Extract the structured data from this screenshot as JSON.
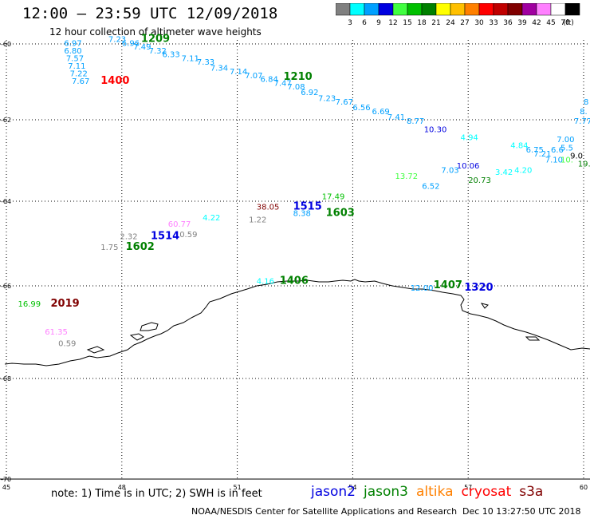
{
  "title": "12:00 – 23:59 UTC 12/09/2018",
  "subtitle": "12 hour collection of altimeter wave heights",
  "colorbar": {
    "unit": "(ft)",
    "swatches": [
      {
        "label": "3",
        "color": "#808080"
      },
      {
        "label": "6",
        "color": "#00ffff"
      },
      {
        "label": "9",
        "color": "#00a0ff"
      },
      {
        "label": "12",
        "color": "#0000e0"
      },
      {
        "label": "15",
        "color": "#40ff40"
      },
      {
        "label": "18",
        "color": "#00c000"
      },
      {
        "label": "21",
        "color": "#008000"
      },
      {
        "label": "24",
        "color": "#ffff00"
      },
      {
        "label": "27",
        "color": "#ffc000"
      },
      {
        "label": "30",
        "color": "#ff8000"
      },
      {
        "label": "33",
        "color": "#ff0000"
      },
      {
        "label": "36",
        "color": "#c00000"
      },
      {
        "label": "39",
        "color": "#800000"
      },
      {
        "label": "42",
        "color": "#a000a0"
      },
      {
        "label": "45",
        "color": "#ff80ff"
      },
      {
        "label": "70",
        "color": "#ffffff"
      },
      {
        "label": "",
        "color": "#000000"
      }
    ]
  },
  "axes": {
    "lon_ticks": [
      "45",
      "48",
      "51",
      "54",
      "57",
      "60"
    ],
    "lat_ticks": [
      "-60",
      "-62",
      "-64",
      "-66",
      "-68",
      "-70"
    ]
  },
  "labels": [
    {
      "text": "6.97",
      "lon": 46.5,
      "lat": -60.05,
      "color": "#00a0ff"
    },
    {
      "text": "6.80",
      "lon": 46.5,
      "lat": -60.25,
      "color": "#00a0ff"
    },
    {
      "text": "7.57",
      "lon": 46.55,
      "lat": -60.45,
      "color": "#00a0ff"
    },
    {
      "text": "7.11",
      "lon": 46.6,
      "lat": -60.65,
      "color": "#00a0ff"
    },
    {
      "text": "7.22",
      "lon": 46.65,
      "lat": -60.85,
      "color": "#00a0ff"
    },
    {
      "text": "7.67",
      "lon": 46.7,
      "lat": -61.05,
      "color": "#00a0ff"
    },
    {
      "text": "1400",
      "lon": 47.45,
      "lat": -61.05,
      "color": "#ff0000"
    },
    {
      "text": "7.23",
      "lon": 47.65,
      "lat": -59.95,
      "color": "#00a0ff"
    },
    {
      "text": "6.96",
      "lon": 48.0,
      "lat": -60.05,
      "color": "#00a0ff"
    },
    {
      "text": "1209",
      "lon": 48.5,
      "lat": -59.95,
      "color": "#008000"
    },
    {
      "text": "7.49",
      "lon": 48.3,
      "lat": -60.15,
      "color": "#00a0ff"
    },
    {
      "text": "7.32",
      "lon": 48.7,
      "lat": -60.25,
      "color": "#00a0ff"
    },
    {
      "text": "6.33",
      "lon": 49.05,
      "lat": -60.35,
      "color": "#00a0ff"
    },
    {
      "text": "7.11",
      "lon": 49.55,
      "lat": -60.45,
      "color": "#00a0ff"
    },
    {
      "text": "7.33",
      "lon": 49.95,
      "lat": -60.55,
      "color": "#00a0ff"
    },
    {
      "text": "7.34",
      "lon": 50.3,
      "lat": -60.7,
      "color": "#00a0ff"
    },
    {
      "text": "7.14",
      "lon": 50.8,
      "lat": -60.8,
      "color": "#00a0ff"
    },
    {
      "text": "7.07",
      "lon": 51.2,
      "lat": -60.9,
      "color": "#00a0ff"
    },
    {
      "text": "6.84",
      "lon": 51.6,
      "lat": -61.0,
      "color": "#00a0ff"
    },
    {
      "text": "7.47",
      "lon": 51.95,
      "lat": -61.1,
      "color": "#00a0ff"
    },
    {
      "text": "1210",
      "lon": 52.2,
      "lat": -60.95,
      "color": "#008000"
    },
    {
      "text": "7.08",
      "lon": 52.3,
      "lat": -61.2,
      "color": "#00a0ff"
    },
    {
      "text": "6.92",
      "lon": 52.65,
      "lat": -61.35,
      "color": "#00a0ff"
    },
    {
      "text": "7.23",
      "lon": 53.1,
      "lat": -61.5,
      "color": "#00a0ff"
    },
    {
      "text": "7.67",
      "lon": 53.55,
      "lat": -61.6,
      "color": "#00a0ff"
    },
    {
      "text": "6.56",
      "lon": 54.0,
      "lat": -61.75,
      "color": "#00a0ff"
    },
    {
      "text": "6.69",
      "lon": 54.5,
      "lat": -61.85,
      "color": "#00a0ff"
    },
    {
      "text": "7.41",
      "lon": 54.9,
      "lat": -62.0,
      "color": "#00a0ff"
    },
    {
      "text": "8.77",
      "lon": 55.4,
      "lat": -62.1,
      "color": "#00a0ff"
    },
    {
      "text": "10.30",
      "lon": 55.85,
      "lat": -62.3,
      "color": "#0000e0"
    },
    {
      "text": "4.94",
      "lon": 56.8,
      "lat": -62.5,
      "color": "#00ffff"
    },
    {
      "text": "7.77",
      "lon": 59.75,
      "lat": -62.1,
      "color": "#00a0ff"
    },
    {
      "text": "8.",
      "lon": 59.9,
      "lat": -61.85,
      "color": "#00a0ff"
    },
    {
      "text": "8",
      "lon": 60.0,
      "lat": -61.6,
      "color": "#00a0ff"
    },
    {
      "text": "7.00",
      "lon": 59.3,
      "lat": -62.55,
      "color": "#00a0ff"
    },
    {
      "text": "4.84",
      "lon": 58.1,
      "lat": -62.7,
      "color": "#00ffff"
    },
    {
      "text": "6.75",
      "lon": 58.5,
      "lat": -62.8,
      "color": "#00a0ff"
    },
    {
      "text": "7.21",
      "lon": 58.7,
      "lat": -62.9,
      "color": "#00a0ff"
    },
    {
      "text": "6.6",
      "lon": 59.15,
      "lat": -62.8,
      "color": "#00a0ff"
    },
    {
      "text": "5.5",
      "lon": 59.4,
      "lat": -62.75,
      "color": "#00a0ff"
    },
    {
      "text": "7.10",
      "lon": 59.0,
      "lat": -63.05,
      "color": "#00a0ff"
    },
    {
      "text": "9.0",
      "lon": 59.65,
      "lat": -62.95,
      "color": "#000000"
    },
    {
      "text": "10.",
      "lon": 59.4,
      "lat": -63.05,
      "color": "#40ff40"
    },
    {
      "text": "19.",
      "lon": 59.85,
      "lat": -63.15,
      "color": "#008000"
    },
    {
      "text": "10.06",
      "lon": 56.7,
      "lat": -63.2,
      "color": "#0000e0"
    },
    {
      "text": "7.03",
      "lon": 56.3,
      "lat": -63.3,
      "color": "#00a0ff"
    },
    {
      "text": "3.42",
      "lon": 57.7,
      "lat": -63.35,
      "color": "#00ffff"
    },
    {
      "text": "4.20",
      "lon": 58.2,
      "lat": -63.3,
      "color": "#00ffff"
    },
    {
      "text": "13.72",
      "lon": 55.1,
      "lat": -63.45,
      "color": "#40ff40"
    },
    {
      "text": "20.73",
      "lon": 57.0,
      "lat": -63.55,
      "color": "#008000"
    },
    {
      "text": "6.52",
      "lon": 55.8,
      "lat": -63.7,
      "color": "#00a0ff"
    },
    {
      "text": "17.49",
      "lon": 53.2,
      "lat": -63.95,
      "color": "#00c000"
    },
    {
      "text": "38.05",
      "lon": 51.5,
      "lat": -64.2,
      "color": "#800000"
    },
    {
      "text": "1515",
      "lon": 52.45,
      "lat": -64.2,
      "color": "#0000e0"
    },
    {
      "text": "8.38",
      "lon": 52.45,
      "lat": -64.35,
      "color": "#00a0ff"
    },
    {
      "text": "1603",
      "lon": 53.3,
      "lat": -64.35,
      "color": "#008000"
    },
    {
      "text": "4.22",
      "lon": 50.1,
      "lat": -64.45,
      "color": "#00ffff"
    },
    {
      "text": "1.22",
      "lon": 51.3,
      "lat": -64.5,
      "color": "#808080"
    },
    {
      "text": "60.77",
      "lon": 49.2,
      "lat": -64.6,
      "color": "#ff80ff"
    },
    {
      "text": "0.59",
      "lon": 49.5,
      "lat": -64.85,
      "color": "#808080"
    },
    {
      "text": "2.32",
      "lon": 47.95,
      "lat": -64.9,
      "color": "#808080"
    },
    {
      "text": "1514",
      "lon": 48.75,
      "lat": -64.9,
      "color": "#0000e0"
    },
    {
      "text": "1.75",
      "lon": 47.45,
      "lat": -65.15,
      "color": "#808080"
    },
    {
      "text": "1602",
      "lon": 48.1,
      "lat": -65.15,
      "color": "#008000"
    },
    {
      "text": "4.16",
      "lon": 51.5,
      "lat": -65.95,
      "color": "#00ffff"
    },
    {
      "text": "1406",
      "lon": 52.1,
      "lat": -65.95,
      "color": "#008000"
    },
    {
      "text": "12.00",
      "lon": 55.5,
      "lat": -66.1,
      "color": "#00a0ff"
    },
    {
      "text": "1407",
      "lon": 56.1,
      "lat": -66.05,
      "color": "#008000"
    },
    {
      "text": "1320",
      "lon": 56.9,
      "lat": -66.1,
      "color": "#0000e0"
    },
    {
      "text": "16.99",
      "lon": 45.3,
      "lat": -66.45,
      "color": "#00c000"
    },
    {
      "text": "2019",
      "lon": 46.15,
      "lat": -66.45,
      "color": "#800000"
    },
    {
      "text": "61.35",
      "lon": 46.0,
      "lat": -67.05,
      "color": "#ff80ff"
    },
    {
      "text": "0.59",
      "lon": 46.35,
      "lat": -67.3,
      "color": "#808080"
    }
  ],
  "note": "note: 1) Time is in UTC; 2) SWH is in feet",
  "legend": [
    {
      "text": "jason2",
      "color": "#0000e0"
    },
    {
      "text": "jason3",
      "color": "#008000"
    },
    {
      "text": "altika",
      "color": "#ff8000"
    },
    {
      "text": "cryosat",
      "color": "#ff0000"
    },
    {
      "text": "s3a",
      "color": "#800000"
    }
  ],
  "credit": "NOAA/NESDIS Center for Satellite Applications and Research",
  "timestamp": "Dec 10 13:27:50 UTC 2018"
}
